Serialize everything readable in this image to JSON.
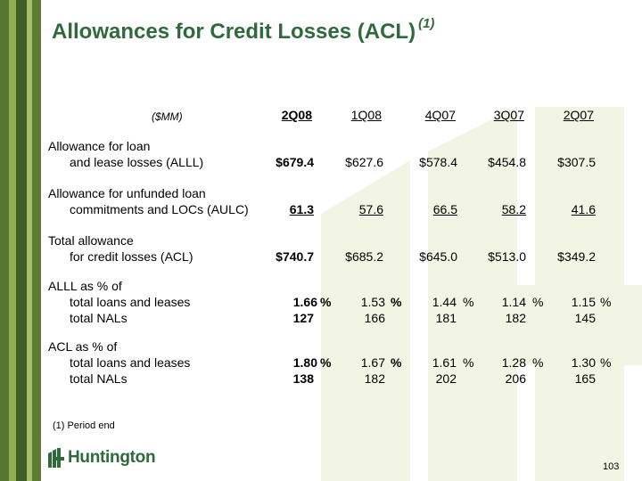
{
  "title": "Allowances for Credit Losses (ACL)",
  "title_note": "(1)",
  "unit_label": "($MM)",
  "columns": [
    "2Q08",
    "1Q08",
    "4Q07",
    "3Q07",
    "2Q07"
  ],
  "rows": {
    "alll_label1": "Allowance for loan",
    "alll_label2": "and lease losses (ALLL)",
    "alll": [
      "$679.4",
      "$627.6",
      "$578.4",
      "$454.8",
      "$307.5"
    ],
    "aulc_label1": "Allowance for unfunded loan",
    "aulc_label2": "commitments and LOCs (AULC)",
    "aulc": [
      "61.3",
      "57.6",
      "66.5",
      "58.2",
      "41.6"
    ],
    "acl_label1": "Total allowance",
    "acl_label2": "for credit losses (ACL)",
    "acl": [
      "$740.7",
      "$685.2",
      "$645.0",
      "$513.0",
      "$349.2"
    ],
    "alll_pct_header": "ALLL as % of",
    "alll_loans_label": "total loans and leases",
    "alll_loans": [
      "1.66",
      "1.53",
      "1.44",
      "1.14",
      "1.15"
    ],
    "alll_nals_label": "total NALs",
    "alll_nals": [
      "127",
      "166",
      "181",
      "182",
      "145"
    ],
    "acl_pct_header": "ACL as % of",
    "acl_loans_label": "total loans and leases",
    "acl_loans": [
      "1.80",
      "1.67",
      "1.61",
      "1.28",
      "1.30"
    ],
    "acl_nals_label": "total NALs",
    "acl_nals": [
      "138",
      "182",
      "202",
      "206",
      "165"
    ],
    "percent_sign": "%"
  },
  "footnote": "(1)  Period end",
  "logo_text": "Huntington",
  "page_number": "103",
  "colors": {
    "brand_green": "#2f6a3a",
    "bar_dark": "#4a6a2a",
    "bar_light": "#8aa84a",
    "watermark": "#f3f5e6"
  }
}
